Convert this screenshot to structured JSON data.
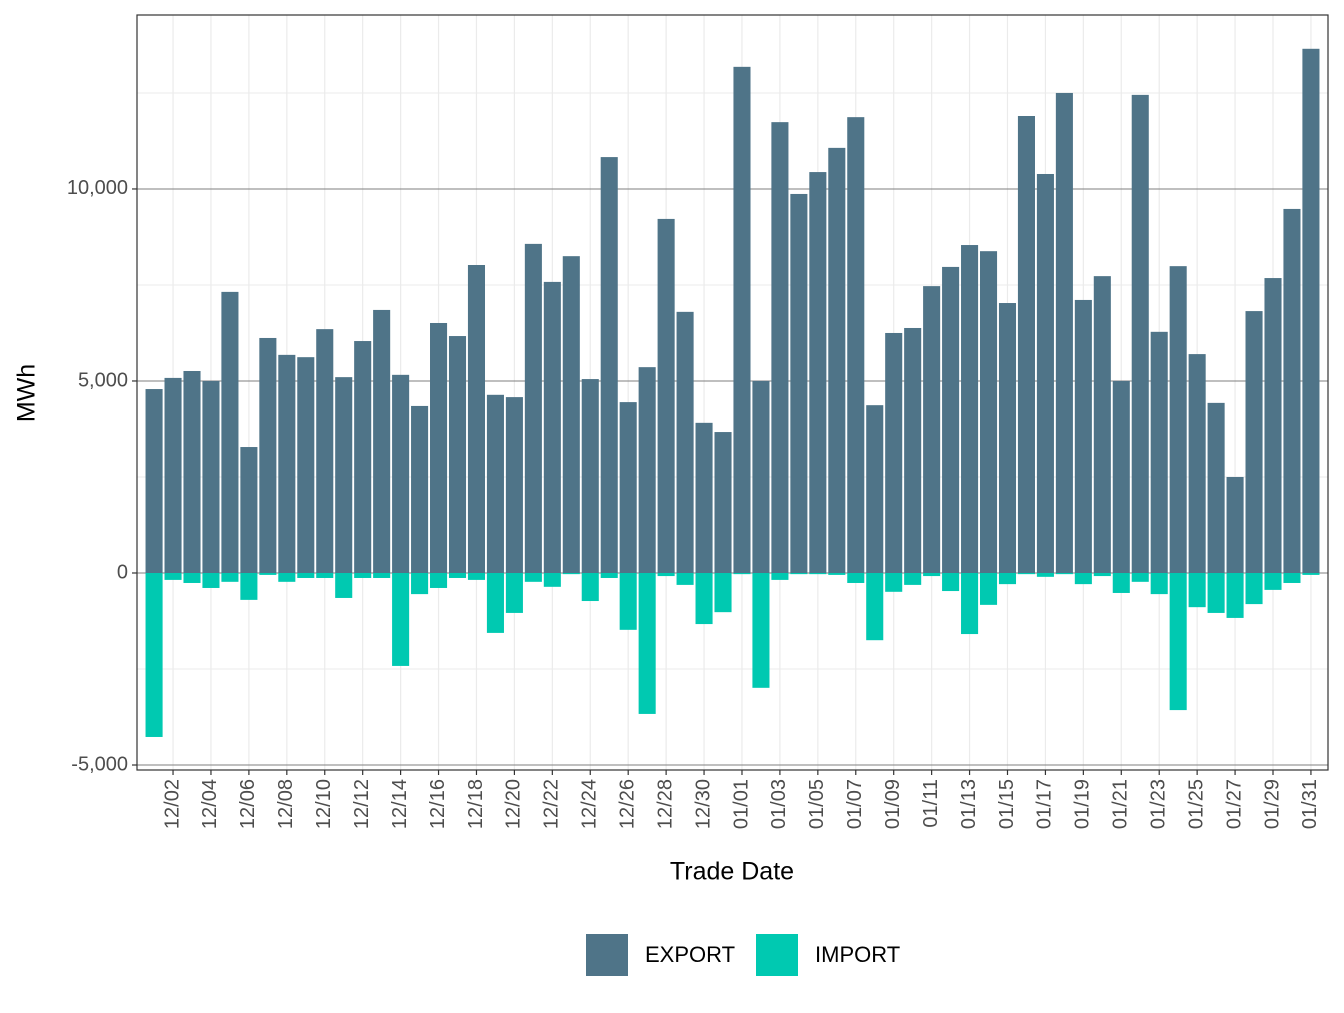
{
  "chart_data": {
    "type": "bar",
    "stacked": false,
    "x_label": "Trade Date",
    "y_label": "MWh",
    "categories": [
      null,
      "12/02",
      null,
      "12/04",
      null,
      "12/06",
      null,
      "12/08",
      null,
      "12/10",
      null,
      "12/12",
      null,
      "12/14",
      null,
      "12/16",
      null,
      "12/18",
      null,
      "12/20",
      null,
      "12/22",
      null,
      "12/24",
      null,
      "12/26",
      null,
      "12/28",
      null,
      "12/30",
      null,
      "01/01",
      null,
      "01/03",
      null,
      "01/05",
      null,
      "01/07",
      null,
      "01/09",
      null,
      "01/11",
      null,
      "01/13",
      null,
      "01/15",
      null,
      "01/17",
      null,
      "01/19",
      null,
      "01/21",
      null,
      "01/23",
      null,
      "01/25",
      null,
      "01/27",
      null,
      "01/29",
      null,
      "01/31"
    ],
    "series": [
      {
        "name": "EXPORT",
        "color": "#4f7488",
        "values": [
          4790,
          5080,
          5260,
          5000,
          7320,
          3280,
          6120,
          5680,
          5620,
          6350,
          5100,
          6040,
          6850,
          5160,
          4350,
          6510,
          6170,
          8020,
          4640,
          4580,
          8570,
          7580,
          8250,
          5050,
          10830,
          4450,
          5360,
          9220,
          6800,
          3910,
          3670,
          13180,
          5000,
          11740,
          9870,
          10440,
          11070,
          11870,
          4370,
          6250,
          6380,
          7470,
          7970,
          8540,
          8380,
          7030,
          11900,
          10390,
          12500,
          7110,
          7730,
          5000,
          12450,
          6280,
          7990,
          5700,
          4430,
          2500,
          6820,
          7680,
          9480,
          13650
        ]
      },
      {
        "name": "IMPORT",
        "color": "#00c9b1",
        "values": [
          -4270,
          -180,
          -260,
          -390,
          -230,
          -700,
          -50,
          -230,
          -130,
          -130,
          -650,
          -130,
          -130,
          -2420,
          -550,
          -390,
          -130,
          -180,
          -1560,
          -1040,
          -230,
          -360,
          -30,
          -730,
          -130,
          -1480,
          -3670,
          -80,
          -310,
          -1330,
          -1020,
          -30,
          -2990,
          -180,
          -30,
          -30,
          -50,
          -260,
          -1750,
          -490,
          -310,
          -80,
          -470,
          -1590,
          -830,
          -290,
          -30,
          -100,
          -30,
          -290,
          -80,
          -520,
          -230,
          -550,
          -3570,
          -890,
          -1040,
          -1170,
          -810,
          -440,
          -260,
          -50
        ]
      }
    ],
    "ylim": [
      -5130,
      14530
    ],
    "yticks": [
      {
        "value": -5000,
        "label": "-5,000"
      },
      0,
      {
        "value": 5000,
        "label": "5,000"
      },
      {
        "value": 10000,
        "label": "10,000"
      }
    ],
    "grid": true,
    "legend": "bottom"
  }
}
